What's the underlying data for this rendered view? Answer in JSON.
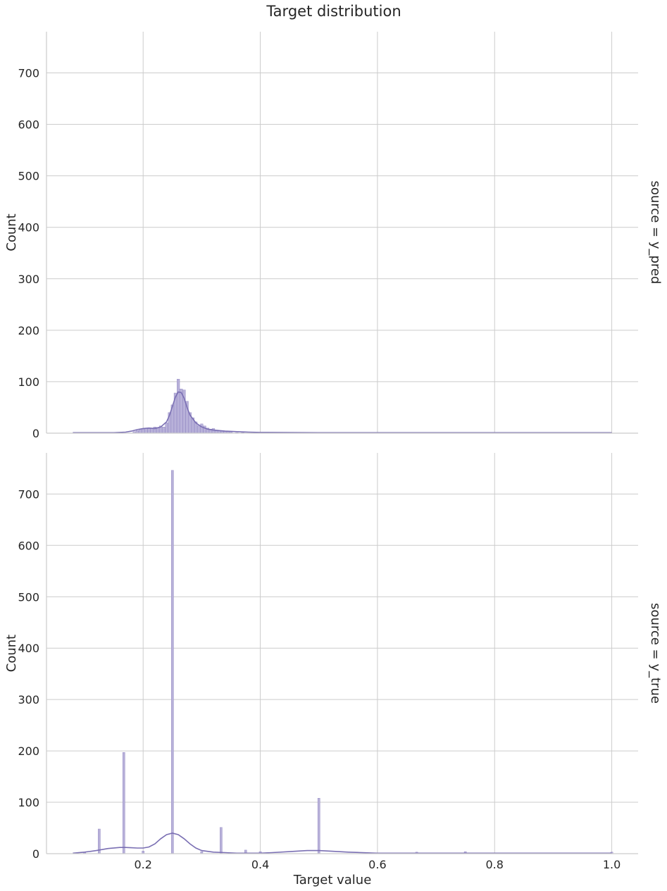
{
  "chart_data": {
    "type": "bar",
    "title": "Target distribution",
    "xlabel": "Target value",
    "xlim": [
      0.035,
      1.045
    ],
    "xticks": [
      "0.2",
      "0.4",
      "0.6",
      "0.8",
      "1.0"
    ],
    "xtick_values": [
      0.2,
      0.4,
      0.6,
      0.8,
      1.0
    ],
    "grid": true,
    "colors": {
      "bar": "#b8b1d9",
      "bar_edge": "#8c82c0",
      "kde": "#7a6fb3",
      "grid": "#cccccc",
      "axis": "#cccccc"
    },
    "panels": [
      {
        "row_label": "source = y_pred",
        "ylabel": "Count",
        "ylim": [
          0,
          780
        ],
        "yticks": [
          "0",
          "100",
          "200",
          "300",
          "400",
          "500",
          "600",
          "700"
        ],
        "ytick_values": [
          0,
          100,
          200,
          300,
          400,
          500,
          600,
          700
        ],
        "bars": {
          "x": [
            0.185,
            0.19,
            0.195,
            0.2,
            0.205,
            0.21,
            0.215,
            0.22,
            0.225,
            0.23,
            0.235,
            0.24,
            0.245,
            0.25,
            0.255,
            0.26,
            0.265,
            0.27,
            0.275,
            0.28,
            0.285,
            0.29,
            0.295,
            0.3,
            0.305,
            0.31,
            0.315,
            0.32,
            0.325,
            0.33,
            0.335,
            0.34,
            0.345,
            0.35,
            0.36,
            0.37
          ],
          "values": [
            3,
            5,
            7,
            8,
            10,
            9,
            10,
            12,
            11,
            14,
            12,
            20,
            40,
            55,
            78,
            105,
            86,
            84,
            62,
            40,
            30,
            22,
            15,
            18,
            14,
            10,
            8,
            9,
            6,
            5,
            5,
            4,
            3,
            2,
            1,
            1
          ]
        },
        "kde": {
          "x": [
            0.08,
            0.12,
            0.15,
            0.17,
            0.18,
            0.19,
            0.2,
            0.21,
            0.22,
            0.23,
            0.24,
            0.245,
            0.25,
            0.255,
            0.26,
            0.265,
            0.27,
            0.275,
            0.28,
            0.29,
            0.3,
            0.31,
            0.32,
            0.34,
            0.36,
            0.38,
            0.4,
            0.5,
            0.6,
            0.8,
            1.0
          ],
          "values": [
            1,
            1,
            1,
            2,
            4,
            7,
            9,
            10,
            9,
            12,
            22,
            35,
            52,
            70,
            80,
            79,
            68,
            50,
            35,
            20,
            12,
            8,
            6,
            4,
            3,
            2,
            1.5,
            1,
            1,
            1,
            1
          ]
        }
      },
      {
        "row_label": "source = y_true",
        "ylabel": "Count",
        "ylim": [
          0,
          780
        ],
        "yticks": [
          "0",
          "100",
          "200",
          "300",
          "400",
          "500",
          "600",
          "700"
        ],
        "ytick_values": [
          0,
          100,
          200,
          300,
          400,
          500,
          600,
          700
        ],
        "bars": {
          "x": [
            0.1,
            0.125,
            0.167,
            0.2,
            0.25,
            0.3,
            0.333,
            0.375,
            0.4,
            0.5,
            0.667,
            0.75,
            1.0
          ],
          "values": [
            3,
            48,
            197,
            5,
            746,
            4,
            51,
            7,
            4,
            108,
            3,
            4,
            3
          ]
        },
        "kde": {
          "x": [
            0.08,
            0.1,
            0.12,
            0.14,
            0.16,
            0.17,
            0.18,
            0.19,
            0.2,
            0.21,
            0.22,
            0.23,
            0.24,
            0.25,
            0.26,
            0.27,
            0.28,
            0.29,
            0.3,
            0.32,
            0.34,
            0.36,
            0.38,
            0.4,
            0.42,
            0.45,
            0.48,
            0.5,
            0.52,
            0.55,
            0.6,
            0.7,
            0.8,
            1.0
          ],
          "values": [
            1,
            3,
            6,
            10,
            12,
            12,
            11.5,
            11,
            11,
            13,
            19,
            29,
            37,
            40,
            37,
            29,
            19,
            11,
            6,
            3,
            2,
            1,
            1,
            1,
            2,
            4,
            6,
            6,
            5,
            3,
            1,
            1,
            1,
            1
          ]
        }
      }
    ]
  }
}
